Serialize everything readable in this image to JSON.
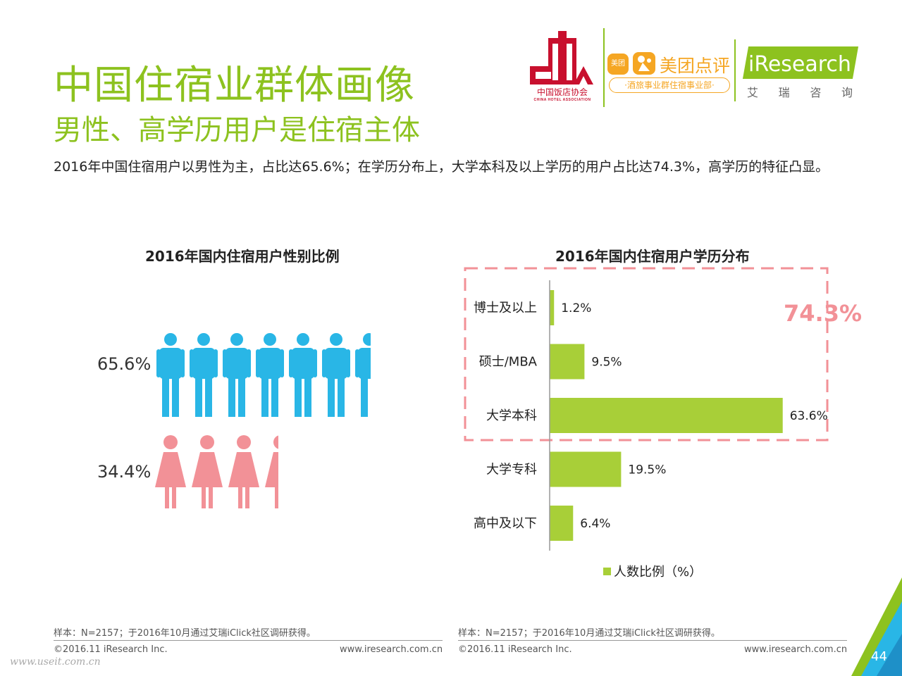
{
  "title": "中国住宿业群体画像",
  "subtitle": "男性、高学历用户是住宿主体",
  "summary": "2016年中国住宿用户以男性为主，占比达65.6%；在学历分布上，大学本科及以上学历的用户占比达74.3%，高学历的特征凸显。",
  "logos": {
    "cha_cn": "中国饭店协会",
    "cha_en": "CHINA HOTEL ASSOCIATION",
    "meituan_badge": "美团",
    "meituan_name": "美团点评",
    "meituan_dept": "·酒旅事业群住宿事业部·",
    "iresearch": "iResearch",
    "iresearch_cn": [
      "艾",
      "瑞",
      "咨",
      "询"
    ]
  },
  "colors": {
    "accent": "#8dc21f",
    "male": "#29b6e6",
    "female": "#f29197",
    "bar": "#a8cf38",
    "highlight": "#f29197"
  },
  "chart_data": [
    {
      "type": "pictogram",
      "title": "2016年国内住宿用户性别比例",
      "series": [
        {
          "name": "男性",
          "icon": "male-person-icon",
          "value": 65.6,
          "label": "65.6%"
        },
        {
          "name": "女性",
          "icon": "female-person-icon",
          "value": 34.4,
          "label": "34.4%"
        }
      ]
    },
    {
      "type": "bar",
      "orientation": "horizontal",
      "title": "2016年国内住宿用户学历分布",
      "categories": [
        "博士及以上",
        "硕士/MBA",
        "大学本科",
        "大学专科",
        "高中及以下"
      ],
      "values": [
        1.2,
        9.5,
        63.6,
        19.5,
        6.4
      ],
      "labels": [
        "1.2%",
        "9.5%",
        "63.6%",
        "19.5%",
        "6.4%"
      ],
      "series_name": "人数比例（%）",
      "xlim": [
        0,
        70
      ],
      "highlight": {
        "categories": [
          "博士及以上",
          "硕士/MBA",
          "大学本科"
        ],
        "label": "74.3%"
      }
    }
  ],
  "footer": {
    "left": {
      "note": "样本：N=2157；于2016年10月通过艾瑞iClick社区调研获得。",
      "copyright": "©2016.11 iResearch Inc.",
      "url": "www.iresearch.com.cn"
    },
    "right": {
      "note": "样本：N=2157；于2016年10月通过艾瑞iClick社区调研获得。",
      "copyright": "©2016.11 iResearch Inc.",
      "url": "www.iresearch.com.cn"
    },
    "watermark": "www.useit.com.cn",
    "page_number": "44"
  }
}
